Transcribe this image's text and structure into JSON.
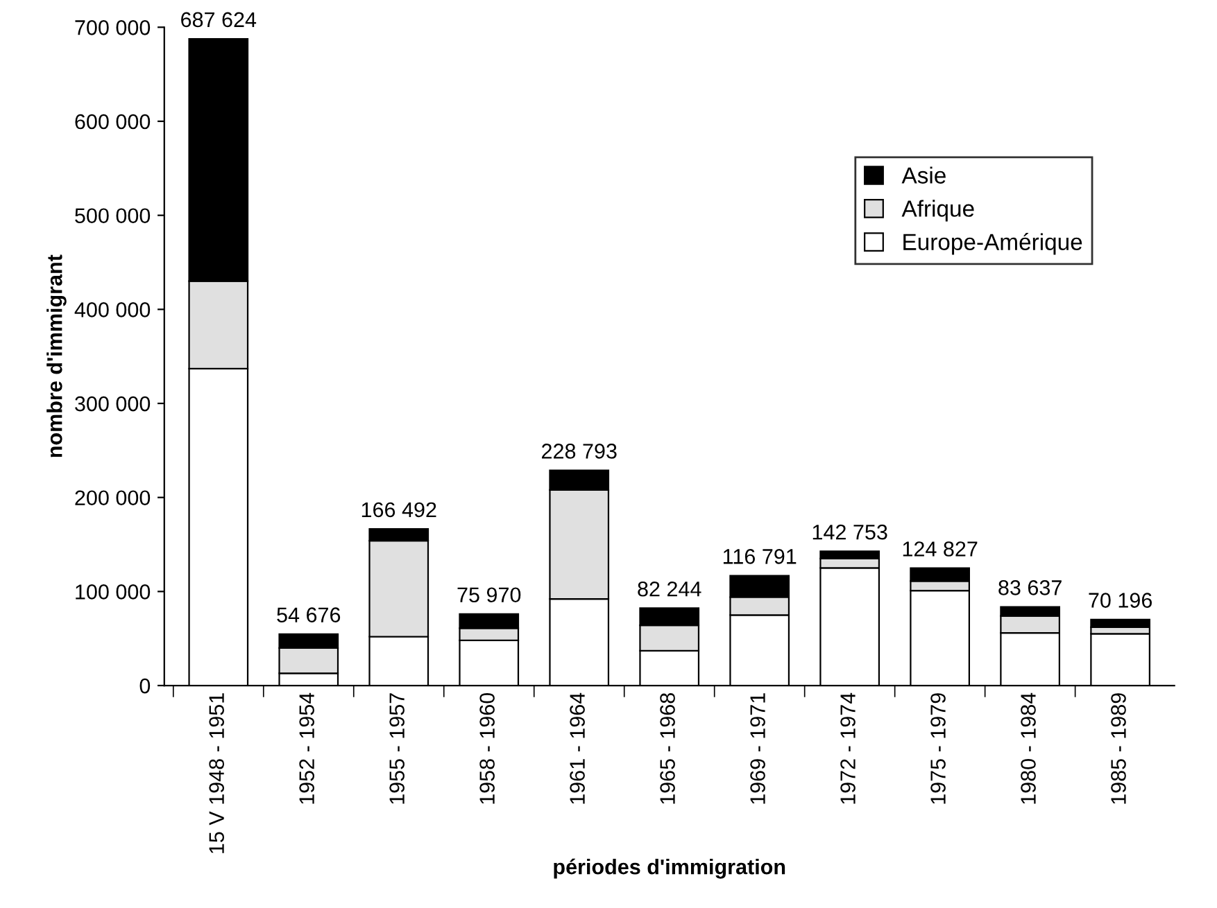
{
  "chart_data": {
    "type": "bar",
    "stacked": true,
    "xlabel": "périodes d'immigration",
    "ylabel": "nombre d'immigrant",
    "categories": [
      "15 V 1948 - 1951",
      "1952 - 1954",
      "1955 - 1957",
      "1958 - 1960",
      "1961 - 1964",
      "1965 - 1968",
      "1969 - 1971",
      "1972 - 1974",
      "1975 - 1979",
      "1980 - 1984",
      "1985 - 1989"
    ],
    "series": [
      {
        "name": "Europe-Amérique",
        "color": "#ffffff",
        "values": [
          337000,
          13000,
          52000,
          48000,
          92000,
          37000,
          75000,
          125000,
          101000,
          56000,
          55000
        ]
      },
      {
        "name": "Afrique",
        "color": "#e0e0e0",
        "values": [
          93000,
          27000,
          102000,
          13000,
          116000,
          27000,
          19000,
          10000,
          10000,
          18000,
          7000
        ]
      },
      {
        "name": "Asie",
        "color": "#000000",
        "values": [
          257624,
          14676,
          12492,
          14970,
          20793,
          18244,
          22791,
          7753,
          13827,
          9637,
          8196
        ]
      }
    ],
    "totals": [
      "687 624",
      "54 676",
      "166 492",
      "75 970",
      "228 793",
      "82 244",
      "116 791",
      "142 753",
      "124 827",
      "83 637",
      "70 196"
    ],
    "ylim": [
      0,
      700000
    ],
    "yticks": [
      {
        "value": 0,
        "label": "0"
      },
      {
        "value": 100000,
        "label": "100 000"
      },
      {
        "value": 200000,
        "label": "200 000"
      },
      {
        "value": 300000,
        "label": "300 000"
      },
      {
        "value": 400000,
        "label": "400 000"
      },
      {
        "value": 500000,
        "label": "500 000"
      },
      {
        "value": 600000,
        "label": "600 000"
      },
      {
        "value": 700000,
        "label": "700 000"
      }
    ],
    "grid": false,
    "legend": "top right"
  }
}
